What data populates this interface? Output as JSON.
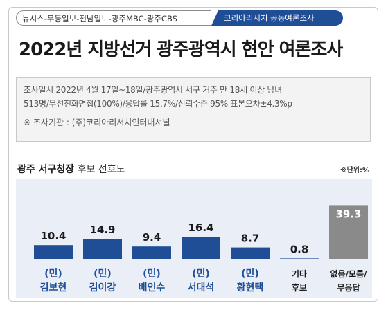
{
  "header": {
    "sources": "뉴시스-무등일보-전남일보-광주MBC-광주CBS",
    "pollster": "코리아리서치 공동여론조사"
  },
  "title": "2022년 지방선거 광주광역시 현안 여론조사",
  "info": {
    "line1": "조사일시 2022년 4월 17일~18일/광주광역시 서구 거주 만 18세 이상 남녀",
    "line2": "513명/무선전화면접(100%)/응답률 15.7%/신뢰수준 95% 표본오차±4.3%p",
    "agency": "※ 조사기관 : (주)코리아리서치인터내셔널"
  },
  "chart_title": {
    "main": "광주 서구청장",
    "sub": "후보 선호도"
  },
  "unit": "※단위:%",
  "colors": {
    "bar": "#1f4e96",
    "bar_other": "#8a8a8a",
    "plot_bg": "#e9eef7",
    "label_blue": "#1f4e96"
  },
  "chart_data": {
    "type": "bar",
    "title": "광주 서구청장 후보 선호도",
    "categories": [
      {
        "line1": "(민)",
        "line2": "김보현"
      },
      {
        "line1": "(민)",
        "line2": "김이강"
      },
      {
        "line1": "(민)",
        "line2": "배인수"
      },
      {
        "line1": "(민)",
        "line2": "서대석"
      },
      {
        "line1": "(민)",
        "line2": "황현택"
      },
      {
        "line1": "기타",
        "line2": "후보"
      },
      {
        "line1": "없음/모름/",
        "line2": "무응답"
      }
    ],
    "values": [
      10.4,
      14.9,
      9.4,
      16.4,
      8.7,
      0.8,
      39.3
    ],
    "value_labels": [
      "10.4",
      "14.9",
      "9.4",
      "16.4",
      "8.7",
      "0.8",
      "39.3"
    ],
    "ylim": [
      0,
      40
    ],
    "grid": false,
    "legend": "none"
  }
}
